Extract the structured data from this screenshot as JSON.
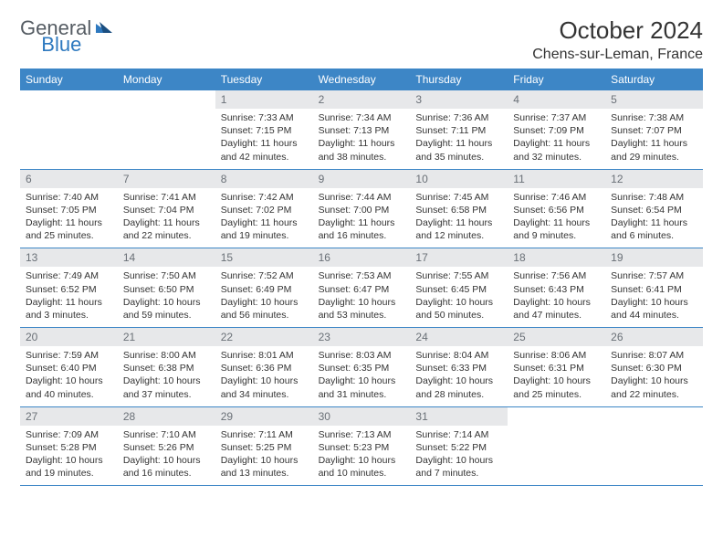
{
  "brand": {
    "part1": "General",
    "part2": "Blue"
  },
  "title": "October 2024",
  "location": "Chens-sur-Leman, France",
  "colors": {
    "header_bg": "#3d86c6",
    "header_text": "#ffffff",
    "daybar_bg": "#e7e8ea",
    "daybar_text": "#6a7077",
    "body_text": "#333333",
    "rule": "#3d86c6",
    "brand_gray": "#555c63",
    "brand_blue": "#2e79bf"
  },
  "day_names": [
    "Sunday",
    "Monday",
    "Tuesday",
    "Wednesday",
    "Thursday",
    "Friday",
    "Saturday"
  ],
  "weeks": [
    [
      null,
      null,
      {
        "n": "1",
        "sr": "7:33 AM",
        "ss": "7:15 PM",
        "dl": "11 hours and 42 minutes."
      },
      {
        "n": "2",
        "sr": "7:34 AM",
        "ss": "7:13 PM",
        "dl": "11 hours and 38 minutes."
      },
      {
        "n": "3",
        "sr": "7:36 AM",
        "ss": "7:11 PM",
        "dl": "11 hours and 35 minutes."
      },
      {
        "n": "4",
        "sr": "7:37 AM",
        "ss": "7:09 PM",
        "dl": "11 hours and 32 minutes."
      },
      {
        "n": "5",
        "sr": "7:38 AM",
        "ss": "7:07 PM",
        "dl": "11 hours and 29 minutes."
      }
    ],
    [
      {
        "n": "6",
        "sr": "7:40 AM",
        "ss": "7:05 PM",
        "dl": "11 hours and 25 minutes."
      },
      {
        "n": "7",
        "sr": "7:41 AM",
        "ss": "7:04 PM",
        "dl": "11 hours and 22 minutes."
      },
      {
        "n": "8",
        "sr": "7:42 AM",
        "ss": "7:02 PM",
        "dl": "11 hours and 19 minutes."
      },
      {
        "n": "9",
        "sr": "7:44 AM",
        "ss": "7:00 PM",
        "dl": "11 hours and 16 minutes."
      },
      {
        "n": "10",
        "sr": "7:45 AM",
        "ss": "6:58 PM",
        "dl": "11 hours and 12 minutes."
      },
      {
        "n": "11",
        "sr": "7:46 AM",
        "ss": "6:56 PM",
        "dl": "11 hours and 9 minutes."
      },
      {
        "n": "12",
        "sr": "7:48 AM",
        "ss": "6:54 PM",
        "dl": "11 hours and 6 minutes."
      }
    ],
    [
      {
        "n": "13",
        "sr": "7:49 AM",
        "ss": "6:52 PM",
        "dl": "11 hours and 3 minutes."
      },
      {
        "n": "14",
        "sr": "7:50 AM",
        "ss": "6:50 PM",
        "dl": "10 hours and 59 minutes."
      },
      {
        "n": "15",
        "sr": "7:52 AM",
        "ss": "6:49 PM",
        "dl": "10 hours and 56 minutes."
      },
      {
        "n": "16",
        "sr": "7:53 AM",
        "ss": "6:47 PM",
        "dl": "10 hours and 53 minutes."
      },
      {
        "n": "17",
        "sr": "7:55 AM",
        "ss": "6:45 PM",
        "dl": "10 hours and 50 minutes."
      },
      {
        "n": "18",
        "sr": "7:56 AM",
        "ss": "6:43 PM",
        "dl": "10 hours and 47 minutes."
      },
      {
        "n": "19",
        "sr": "7:57 AM",
        "ss": "6:41 PM",
        "dl": "10 hours and 44 minutes."
      }
    ],
    [
      {
        "n": "20",
        "sr": "7:59 AM",
        "ss": "6:40 PM",
        "dl": "10 hours and 40 minutes."
      },
      {
        "n": "21",
        "sr": "8:00 AM",
        "ss": "6:38 PM",
        "dl": "10 hours and 37 minutes."
      },
      {
        "n": "22",
        "sr": "8:01 AM",
        "ss": "6:36 PM",
        "dl": "10 hours and 34 minutes."
      },
      {
        "n": "23",
        "sr": "8:03 AM",
        "ss": "6:35 PM",
        "dl": "10 hours and 31 minutes."
      },
      {
        "n": "24",
        "sr": "8:04 AM",
        "ss": "6:33 PM",
        "dl": "10 hours and 28 minutes."
      },
      {
        "n": "25",
        "sr": "8:06 AM",
        "ss": "6:31 PM",
        "dl": "10 hours and 25 minutes."
      },
      {
        "n": "26",
        "sr": "8:07 AM",
        "ss": "6:30 PM",
        "dl": "10 hours and 22 minutes."
      }
    ],
    [
      {
        "n": "27",
        "sr": "7:09 AM",
        "ss": "5:28 PM",
        "dl": "10 hours and 19 minutes."
      },
      {
        "n": "28",
        "sr": "7:10 AM",
        "ss": "5:26 PM",
        "dl": "10 hours and 16 minutes."
      },
      {
        "n": "29",
        "sr": "7:11 AM",
        "ss": "5:25 PM",
        "dl": "10 hours and 13 minutes."
      },
      {
        "n": "30",
        "sr": "7:13 AM",
        "ss": "5:23 PM",
        "dl": "10 hours and 10 minutes."
      },
      {
        "n": "31",
        "sr": "7:14 AM",
        "ss": "5:22 PM",
        "dl": "10 hours and 7 minutes."
      },
      null,
      null
    ]
  ],
  "labels": {
    "sunrise": "Sunrise:",
    "sunset": "Sunset:",
    "daylight": "Daylight:"
  }
}
